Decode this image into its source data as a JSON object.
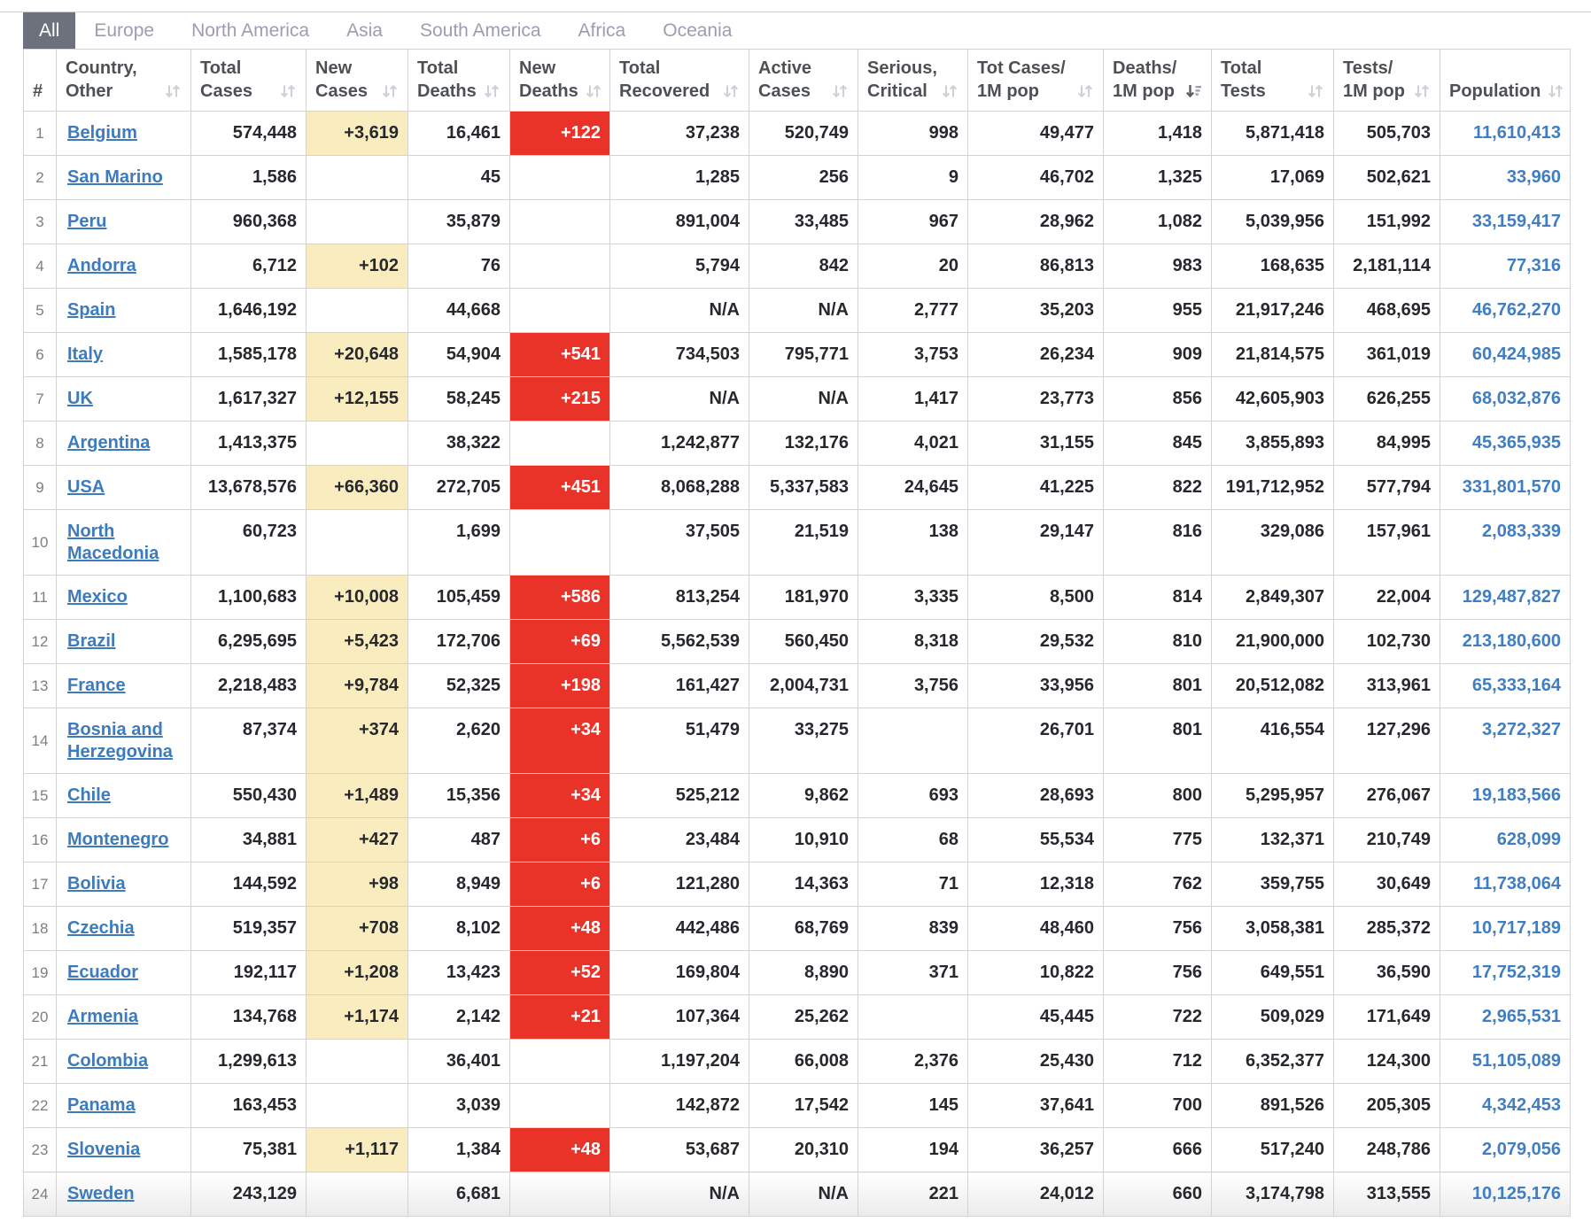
{
  "tabs": [
    {
      "label": "All",
      "active": true
    },
    {
      "label": "Europe",
      "active": false
    },
    {
      "label": "North America",
      "active": false
    },
    {
      "label": "Asia",
      "active": false
    },
    {
      "label": "South America",
      "active": false
    },
    {
      "label": "Africa",
      "active": false
    },
    {
      "label": "Oceania",
      "active": false
    }
  ],
  "colors": {
    "new_cases_highlight": "#f9ecbf",
    "new_deaths_highlight": "#ea3328",
    "country_link_blue": "#3b7bbe",
    "population_blue": "#3f7ec2",
    "active_tab_background": "#6d717c"
  },
  "table": {
    "headers": [
      {
        "key": "rank",
        "line1": "",
        "line2": "#",
        "sort": "none"
      },
      {
        "key": "country",
        "line1": "Country,",
        "line2": "Other",
        "sort": "inactive"
      },
      {
        "key": "total_cases",
        "line1": "Total",
        "line2": "Cases",
        "sort": "inactive"
      },
      {
        "key": "new_cases",
        "line1": "New",
        "line2": "Cases",
        "sort": "inactive"
      },
      {
        "key": "total_deaths",
        "line1": "Total",
        "line2": "Deaths",
        "sort": "inactive"
      },
      {
        "key": "new_deaths",
        "line1": "New",
        "line2": "Deaths",
        "sort": "inactive"
      },
      {
        "key": "total_recovered",
        "line1": "Total",
        "line2": "Recovered",
        "sort": "inactive"
      },
      {
        "key": "active_cases",
        "line1": "Active",
        "line2": "Cases",
        "sort": "inactive"
      },
      {
        "key": "serious_critical",
        "line1": "Serious,",
        "line2": "Critical",
        "sort": "inactive"
      },
      {
        "key": "tot_cases_1m",
        "line1": "Tot Cases/",
        "line2": "1M pop",
        "sort": "inactive"
      },
      {
        "key": "deaths_1m",
        "line1": "Deaths/",
        "line2": "1M pop",
        "sort": "active-desc"
      },
      {
        "key": "total_tests",
        "line1": "Total",
        "line2": "Tests",
        "sort": "inactive"
      },
      {
        "key": "tests_1m",
        "line1": "Tests/",
        "line2": "1M pop",
        "sort": "inactive"
      },
      {
        "key": "population",
        "line1": "",
        "line2": "Population",
        "sort": "inactive"
      }
    ],
    "rows": [
      {
        "rank": "1",
        "country": "Belgium",
        "total_cases": "574,448",
        "new_cases": "+3,619",
        "total_deaths": "16,461",
        "new_deaths": "+122",
        "total_recovered": "37,238",
        "active_cases": "520,749",
        "serious_critical": "998",
        "tot_cases_1m": "49,477",
        "deaths_1m": "1,418",
        "total_tests": "5,871,418",
        "tests_1m": "505,703",
        "population": "11,610,413"
      },
      {
        "rank": "2",
        "country": "San Marino",
        "total_cases": "1,586",
        "new_cases": "",
        "total_deaths": "45",
        "new_deaths": "",
        "total_recovered": "1,285",
        "active_cases": "256",
        "serious_critical": "9",
        "tot_cases_1m": "46,702",
        "deaths_1m": "1,325",
        "total_tests": "17,069",
        "tests_1m": "502,621",
        "population": "33,960"
      },
      {
        "rank": "3",
        "country": "Peru",
        "total_cases": "960,368",
        "new_cases": "",
        "total_deaths": "35,879",
        "new_deaths": "",
        "total_recovered": "891,004",
        "active_cases": "33,485",
        "serious_critical": "967",
        "tot_cases_1m": "28,962",
        "deaths_1m": "1,082",
        "total_tests": "5,039,956",
        "tests_1m": "151,992",
        "population": "33,159,417"
      },
      {
        "rank": "4",
        "country": "Andorra",
        "total_cases": "6,712",
        "new_cases": "+102",
        "total_deaths": "76",
        "new_deaths": "",
        "total_recovered": "5,794",
        "active_cases": "842",
        "serious_critical": "20",
        "tot_cases_1m": "86,813",
        "deaths_1m": "983",
        "total_tests": "168,635",
        "tests_1m": "2,181,114",
        "population": "77,316"
      },
      {
        "rank": "5",
        "country": "Spain",
        "total_cases": "1,646,192",
        "new_cases": "",
        "total_deaths": "44,668",
        "new_deaths": "",
        "total_recovered": "N/A",
        "active_cases": "N/A",
        "serious_critical": "2,777",
        "tot_cases_1m": "35,203",
        "deaths_1m": "955",
        "total_tests": "21,917,246",
        "tests_1m": "468,695",
        "population": "46,762,270"
      },
      {
        "rank": "6",
        "country": "Italy",
        "total_cases": "1,585,178",
        "new_cases": "+20,648",
        "total_deaths": "54,904",
        "new_deaths": "+541",
        "total_recovered": "734,503",
        "active_cases": "795,771",
        "serious_critical": "3,753",
        "tot_cases_1m": "26,234",
        "deaths_1m": "909",
        "total_tests": "21,814,575",
        "tests_1m": "361,019",
        "population": "60,424,985"
      },
      {
        "rank": "7",
        "country": "UK",
        "total_cases": "1,617,327",
        "new_cases": "+12,155",
        "total_deaths": "58,245",
        "new_deaths": "+215",
        "total_recovered": "N/A",
        "active_cases": "N/A",
        "serious_critical": "1,417",
        "tot_cases_1m": "23,773",
        "deaths_1m": "856",
        "total_tests": "42,605,903",
        "tests_1m": "626,255",
        "population": "68,032,876"
      },
      {
        "rank": "8",
        "country": "Argentina",
        "total_cases": "1,413,375",
        "new_cases": "",
        "total_deaths": "38,322",
        "new_deaths": "",
        "total_recovered": "1,242,877",
        "active_cases": "132,176",
        "serious_critical": "4,021",
        "tot_cases_1m": "31,155",
        "deaths_1m": "845",
        "total_tests": "3,855,893",
        "tests_1m": "84,995",
        "population": "45,365,935"
      },
      {
        "rank": "9",
        "country": "USA",
        "total_cases": "13,678,576",
        "new_cases": "+66,360",
        "total_deaths": "272,705",
        "new_deaths": "+451",
        "total_recovered": "8,068,288",
        "active_cases": "5,337,583",
        "serious_critical": "24,645",
        "tot_cases_1m": "41,225",
        "deaths_1m": "822",
        "total_tests": "191,712,952",
        "tests_1m": "577,794",
        "population": "331,801,570"
      },
      {
        "rank": "10",
        "country": "North Macedonia",
        "total_cases": "60,723",
        "new_cases": "",
        "total_deaths": "1,699",
        "new_deaths": "",
        "total_recovered": "37,505",
        "active_cases": "21,519",
        "serious_critical": "138",
        "tot_cases_1m": "29,147",
        "deaths_1m": "816",
        "total_tests": "329,086",
        "tests_1m": "157,961",
        "population": "2,083,339"
      },
      {
        "rank": "11",
        "country": "Mexico",
        "total_cases": "1,100,683",
        "new_cases": "+10,008",
        "total_deaths": "105,459",
        "new_deaths": "+586",
        "total_recovered": "813,254",
        "active_cases": "181,970",
        "serious_critical": "3,335",
        "tot_cases_1m": "8,500",
        "deaths_1m": "814",
        "total_tests": "2,849,307",
        "tests_1m": "22,004",
        "population": "129,487,827"
      },
      {
        "rank": "12",
        "country": "Brazil",
        "total_cases": "6,295,695",
        "new_cases": "+5,423",
        "total_deaths": "172,706",
        "new_deaths": "+69",
        "total_recovered": "5,562,539",
        "active_cases": "560,450",
        "serious_critical": "8,318",
        "tot_cases_1m": "29,532",
        "deaths_1m": "810",
        "total_tests": "21,900,000",
        "tests_1m": "102,730",
        "population": "213,180,600"
      },
      {
        "rank": "13",
        "country": "France",
        "total_cases": "2,218,483",
        "new_cases": "+9,784",
        "total_deaths": "52,325",
        "new_deaths": "+198",
        "total_recovered": "161,427",
        "active_cases": "2,004,731",
        "serious_critical": "3,756",
        "tot_cases_1m": "33,956",
        "deaths_1m": "801",
        "total_tests": "20,512,082",
        "tests_1m": "313,961",
        "population": "65,333,164"
      },
      {
        "rank": "14",
        "country": "Bosnia and Herzegovina",
        "total_cases": "87,374",
        "new_cases": "+374",
        "total_deaths": "2,620",
        "new_deaths": "+34",
        "total_recovered": "51,479",
        "active_cases": "33,275",
        "serious_critical": "",
        "tot_cases_1m": "26,701",
        "deaths_1m": "801",
        "total_tests": "416,554",
        "tests_1m": "127,296",
        "population": "3,272,327"
      },
      {
        "rank": "15",
        "country": "Chile",
        "total_cases": "550,430",
        "new_cases": "+1,489",
        "total_deaths": "15,356",
        "new_deaths": "+34",
        "total_recovered": "525,212",
        "active_cases": "9,862",
        "serious_critical": "693",
        "tot_cases_1m": "28,693",
        "deaths_1m": "800",
        "total_tests": "5,295,957",
        "tests_1m": "276,067",
        "population": "19,183,566"
      },
      {
        "rank": "16",
        "country": "Montenegro",
        "total_cases": "34,881",
        "new_cases": "+427",
        "total_deaths": "487",
        "new_deaths": "+6",
        "total_recovered": "23,484",
        "active_cases": "10,910",
        "serious_critical": "68",
        "tot_cases_1m": "55,534",
        "deaths_1m": "775",
        "total_tests": "132,371",
        "tests_1m": "210,749",
        "population": "628,099"
      },
      {
        "rank": "17",
        "country": "Bolivia",
        "total_cases": "144,592",
        "new_cases": "+98",
        "total_deaths": "8,949",
        "new_deaths": "+6",
        "total_recovered": "121,280",
        "active_cases": "14,363",
        "serious_critical": "71",
        "tot_cases_1m": "12,318",
        "deaths_1m": "762",
        "total_tests": "359,755",
        "tests_1m": "30,649",
        "population": "11,738,064"
      },
      {
        "rank": "18",
        "country": "Czechia",
        "total_cases": "519,357",
        "new_cases": "+708",
        "total_deaths": "8,102",
        "new_deaths": "+48",
        "total_recovered": "442,486",
        "active_cases": "68,769",
        "serious_critical": "839",
        "tot_cases_1m": "48,460",
        "deaths_1m": "756",
        "total_tests": "3,058,381",
        "tests_1m": "285,372",
        "population": "10,717,189"
      },
      {
        "rank": "19",
        "country": "Ecuador",
        "total_cases": "192,117",
        "new_cases": "+1,208",
        "total_deaths": "13,423",
        "new_deaths": "+52",
        "total_recovered": "169,804",
        "active_cases": "8,890",
        "serious_critical": "371",
        "tot_cases_1m": "10,822",
        "deaths_1m": "756",
        "total_tests": "649,551",
        "tests_1m": "36,590",
        "population": "17,752,319"
      },
      {
        "rank": "20",
        "country": "Armenia",
        "total_cases": "134,768",
        "new_cases": "+1,174",
        "total_deaths": "2,142",
        "new_deaths": "+21",
        "total_recovered": "107,364",
        "active_cases": "25,262",
        "serious_critical": "",
        "tot_cases_1m": "45,445",
        "deaths_1m": "722",
        "total_tests": "509,029",
        "tests_1m": "171,649",
        "population": "2,965,531"
      },
      {
        "rank": "21",
        "country": "Colombia",
        "total_cases": "1,299,613",
        "new_cases": "",
        "total_deaths": "36,401",
        "new_deaths": "",
        "total_recovered": "1,197,204",
        "active_cases": "66,008",
        "serious_critical": "2,376",
        "tot_cases_1m": "25,430",
        "deaths_1m": "712",
        "total_tests": "6,352,377",
        "tests_1m": "124,300",
        "population": "51,105,089"
      },
      {
        "rank": "22",
        "country": "Panama",
        "total_cases": "163,453",
        "new_cases": "",
        "total_deaths": "3,039",
        "new_deaths": "",
        "total_recovered": "142,872",
        "active_cases": "17,542",
        "serious_critical": "145",
        "tot_cases_1m": "37,641",
        "deaths_1m": "700",
        "total_tests": "891,526",
        "tests_1m": "205,305",
        "population": "4,342,453"
      },
      {
        "rank": "23",
        "country": "Slovenia",
        "total_cases": "75,381",
        "new_cases": "+1,117",
        "total_deaths": "1,384",
        "new_deaths": "+48",
        "total_recovered": "53,687",
        "active_cases": "20,310",
        "serious_critical": "194",
        "tot_cases_1m": "36,257",
        "deaths_1m": "666",
        "total_tests": "517,240",
        "tests_1m": "248,786",
        "population": "2,079,056"
      },
      {
        "rank": "24",
        "country": "Sweden",
        "total_cases": "243,129",
        "new_cases": "",
        "total_deaths": "6,681",
        "new_deaths": "",
        "total_recovered": "N/A",
        "active_cases": "N/A",
        "serious_critical": "221",
        "tot_cases_1m": "24,012",
        "deaths_1m": "660",
        "total_tests": "3,174,798",
        "tests_1m": "313,555",
        "population": "10,125,176"
      }
    ]
  }
}
